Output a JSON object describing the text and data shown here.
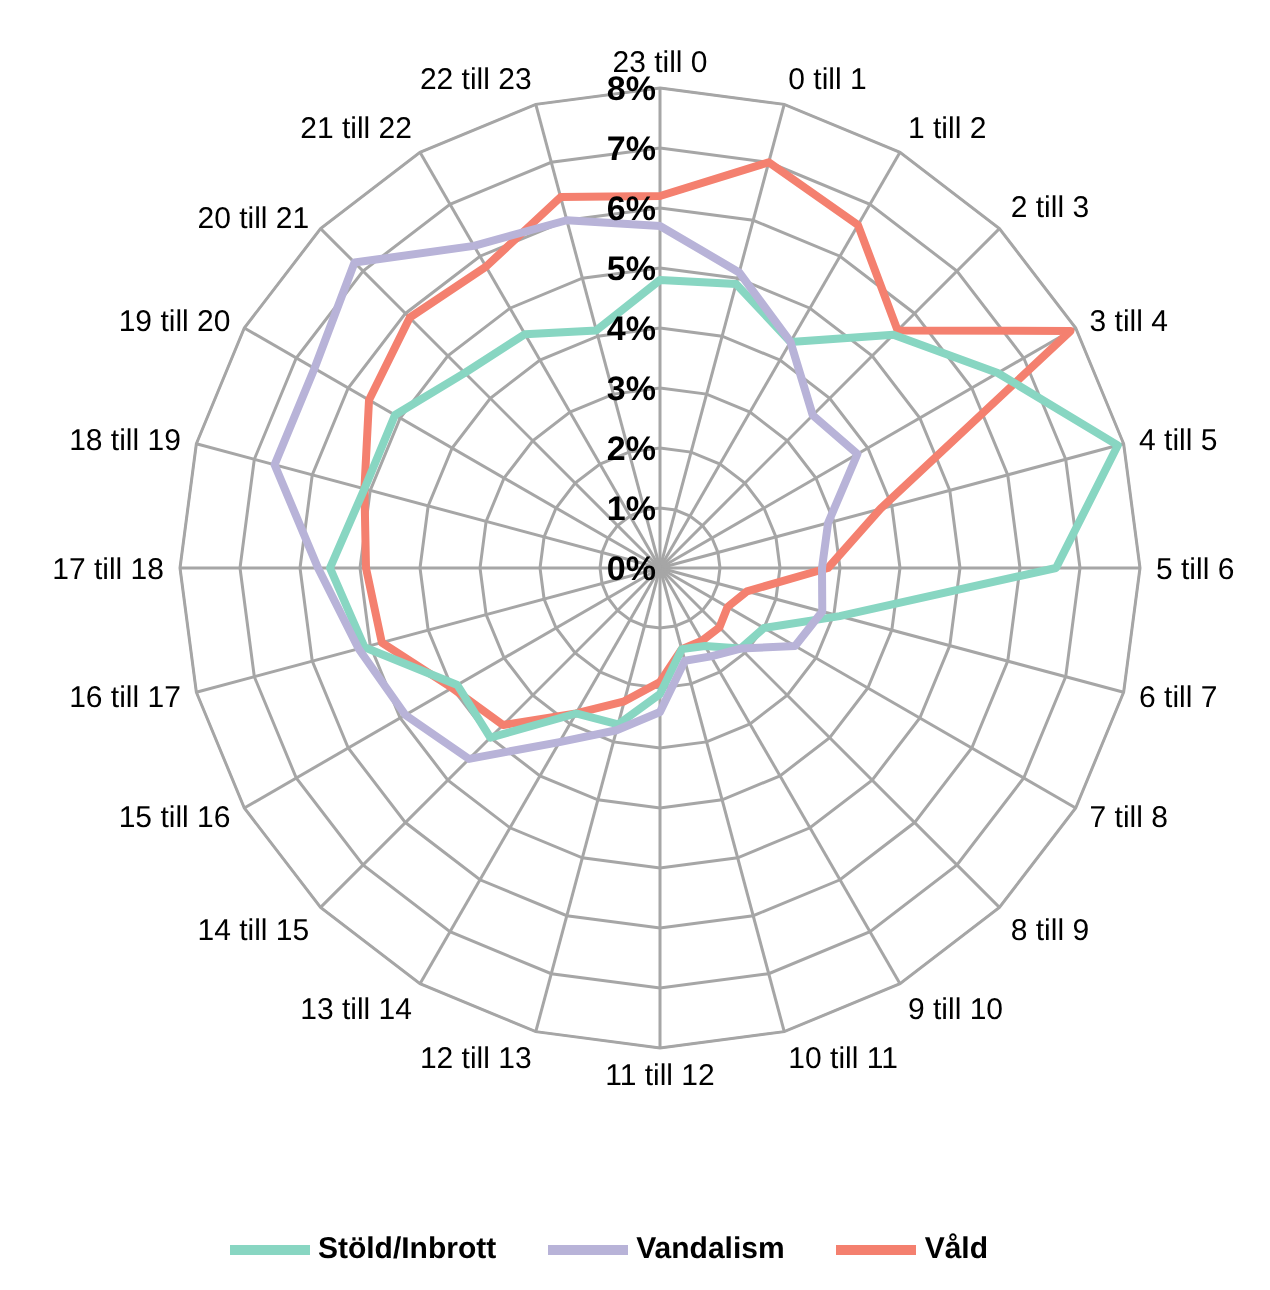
{
  "chart_data": {
    "type": "radar",
    "categories": [
      "23 till 0",
      "0 till 1",
      "1 till 2",
      "2 till 3",
      "3 till 4",
      "4 till 5",
      "5 till 6",
      "6 till 7",
      "7 till 8",
      "8 till 9",
      "9 till 10",
      "10 till 11",
      "11 till 12",
      "12 till 13",
      "13 till 14",
      "14 till 15",
      "15 till 16",
      "16 till 17",
      "17 till 18",
      "18 till 19",
      "19 till 20",
      "20 till 21",
      "21 till 22",
      "22 till 23"
    ],
    "series": [
      {
        "name": "Våld",
        "color": "#f4806f",
        "values": [
          6.2,
          7.0,
          6.6,
          5.6,
          7.9,
          3.8,
          2.8,
          1.5,
          1.3,
          1.4,
          1.4,
          1.4,
          1.9,
          2.3,
          2.8,
          3.7,
          4.0,
          4.8,
          4.9,
          5.1,
          5.6,
          5.9,
          5.8,
          6.4
        ]
      },
      {
        "name": "Stöld/Inbrott",
        "color": "#88d6c2",
        "values": [
          4.8,
          4.9,
          4.35,
          5.5,
          6.5,
          7.9,
          6.6,
          3.1,
          2.0,
          1.9,
          1.5,
          1.4,
          2.1,
          2.7,
          2.8,
          4.0,
          3.9,
          5.1,
          5.5,
          5.1,
          5.1,
          4.6,
          4.5,
          4.1
        ]
      },
      {
        "name": "Vandalism",
        "color": "#b8b3d8",
        "values": [
          5.7,
          5.1,
          4.35,
          3.6,
          3.8,
          2.9,
          2.7,
          2.8,
          2.6,
          1.9,
          1.7,
          1.6,
          2.4,
          2.8,
          3.35,
          4.5,
          4.9,
          5.2,
          5.7,
          6.65,
          6.65,
          7.2,
          6.2,
          6.0
        ]
      }
    ],
    "ylim": [
      0,
      8
    ],
    "yticks": [
      {
        "value": 0,
        "label": "0%"
      },
      {
        "value": 1,
        "label": "1%"
      },
      {
        "value": 2,
        "label": "2%"
      },
      {
        "value": 3,
        "label": "3%"
      },
      {
        "value": 4,
        "label": "4%"
      },
      {
        "value": 5,
        "label": "5%"
      },
      {
        "value": 6,
        "label": "6%"
      },
      {
        "value": 7,
        "label": "7%"
      },
      {
        "value": 8,
        "label": "8%"
      }
    ],
    "grid": true,
    "legend": "bottom",
    "marker": "none"
  }
}
